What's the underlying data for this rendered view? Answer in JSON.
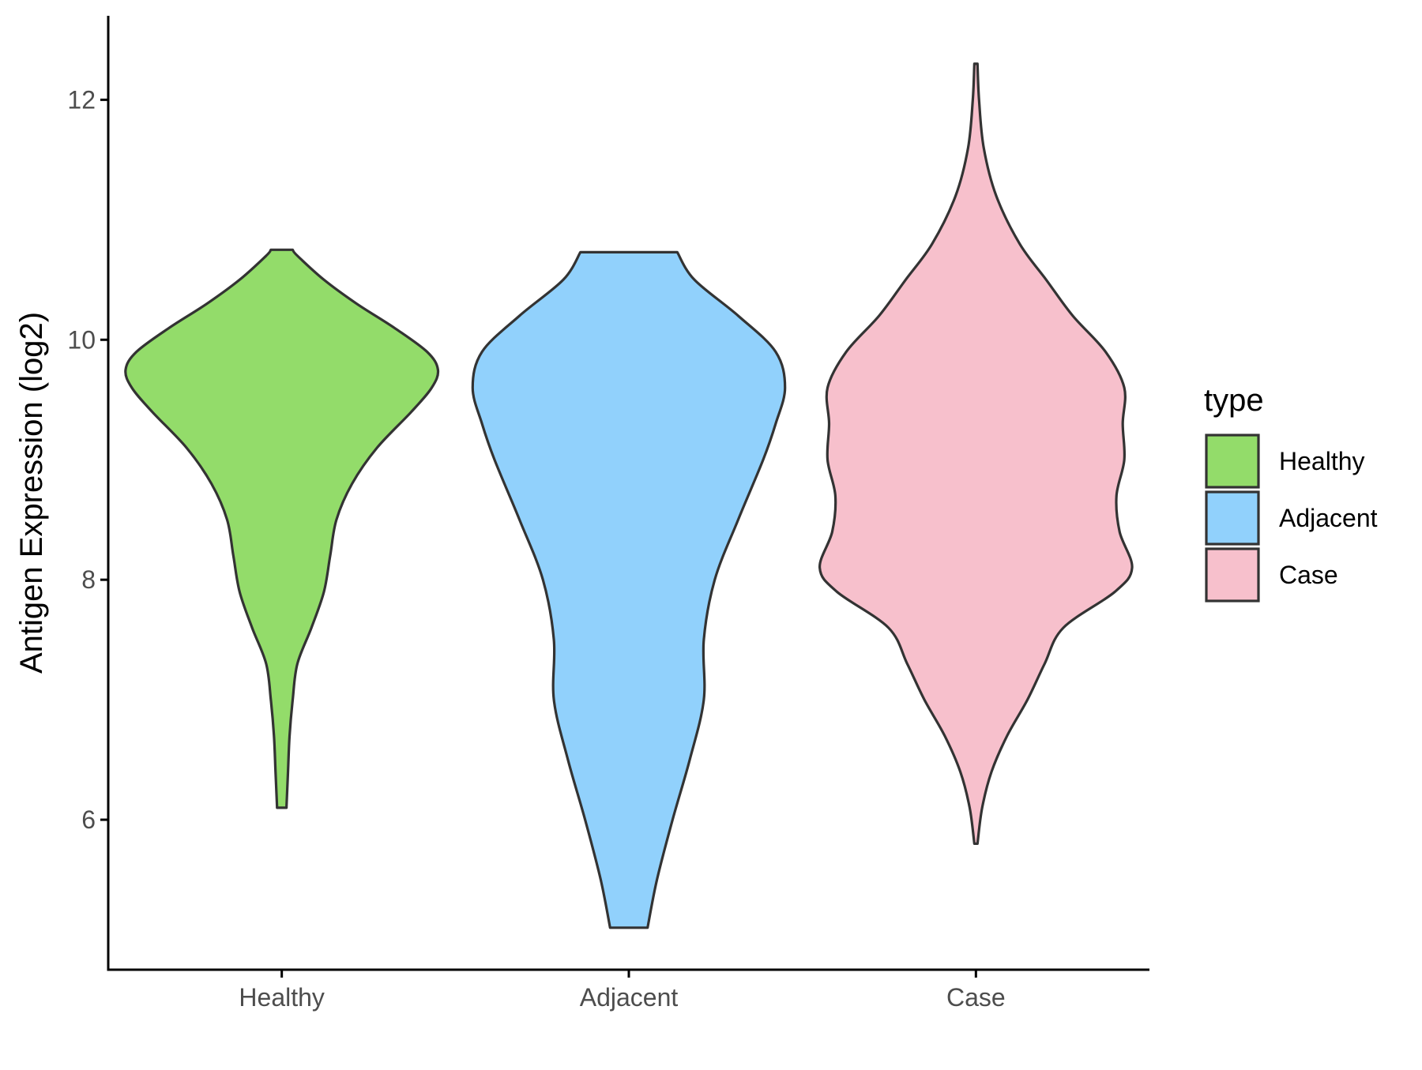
{
  "chart_data": {
    "type": "violin",
    "title": "",
    "xlabel": "",
    "ylabel": "Antigen Expression (log2)",
    "ylim": [
      4.75,
      12.7
    ],
    "y_ticks": [
      6,
      8,
      10,
      12
    ],
    "categories": [
      "Healthy",
      "Adjacent",
      "Case"
    ],
    "grid": false,
    "legend": {
      "title": "type",
      "placement": "right",
      "entries": [
        "Healthy",
        "Adjacent",
        "Case"
      ]
    },
    "series": [
      {
        "name": "Healthy",
        "color": "#93DC6A",
        "min": 6.1,
        "max": 10.75,
        "profile": [
          [
            6.1,
            0.03
          ],
          [
            6.4,
            0.04
          ],
          [
            6.7,
            0.05
          ],
          [
            7.0,
            0.07
          ],
          [
            7.3,
            0.1
          ],
          [
            7.6,
            0.19
          ],
          [
            7.9,
            0.27
          ],
          [
            8.2,
            0.31
          ],
          [
            8.5,
            0.35
          ],
          [
            8.8,
            0.45
          ],
          [
            9.1,
            0.61
          ],
          [
            9.4,
            0.83
          ],
          [
            9.6,
            0.96
          ],
          [
            9.75,
            1.0
          ],
          [
            9.9,
            0.93
          ],
          [
            10.1,
            0.72
          ],
          [
            10.3,
            0.48
          ],
          [
            10.5,
            0.27
          ],
          [
            10.7,
            0.1
          ],
          [
            10.75,
            0.07
          ]
        ]
      },
      {
        "name": "Adjacent",
        "color": "#91D1FC",
        "min": 5.1,
        "max": 10.73,
        "profile": [
          [
            5.1,
            0.12
          ],
          [
            5.5,
            0.18
          ],
          [
            6.0,
            0.28
          ],
          [
            6.5,
            0.39
          ],
          [
            7.0,
            0.48
          ],
          [
            7.5,
            0.48
          ],
          [
            8.0,
            0.55
          ],
          [
            8.5,
            0.7
          ],
          [
            9.0,
            0.86
          ],
          [
            9.3,
            0.94
          ],
          [
            9.6,
            1.0
          ],
          [
            9.9,
            0.94
          ],
          [
            10.2,
            0.7
          ],
          [
            10.5,
            0.42
          ],
          [
            10.73,
            0.31
          ]
        ]
      },
      {
        "name": "Case",
        "color": "#F7C0CC",
        "min": 5.8,
        "max": 12.3,
        "profile": [
          [
            5.8,
            0.01
          ],
          [
            6.1,
            0.04
          ],
          [
            6.4,
            0.1
          ],
          [
            6.7,
            0.2
          ],
          [
            7.0,
            0.33
          ],
          [
            7.3,
            0.44
          ],
          [
            7.6,
            0.56
          ],
          [
            7.9,
            0.89
          ],
          [
            8.1,
            1.0
          ],
          [
            8.4,
            0.92
          ],
          [
            8.7,
            0.9
          ],
          [
            9.0,
            0.95
          ],
          [
            9.3,
            0.94
          ],
          [
            9.6,
            0.95
          ],
          [
            9.9,
            0.83
          ],
          [
            10.2,
            0.62
          ],
          [
            10.5,
            0.45
          ],
          [
            10.8,
            0.28
          ],
          [
            11.2,
            0.13
          ],
          [
            11.6,
            0.05
          ],
          [
            12.0,
            0.02
          ],
          [
            12.3,
            0.01
          ]
        ]
      }
    ]
  },
  "style": {
    "outline_color": "#333333",
    "axis_color": "#000000"
  }
}
